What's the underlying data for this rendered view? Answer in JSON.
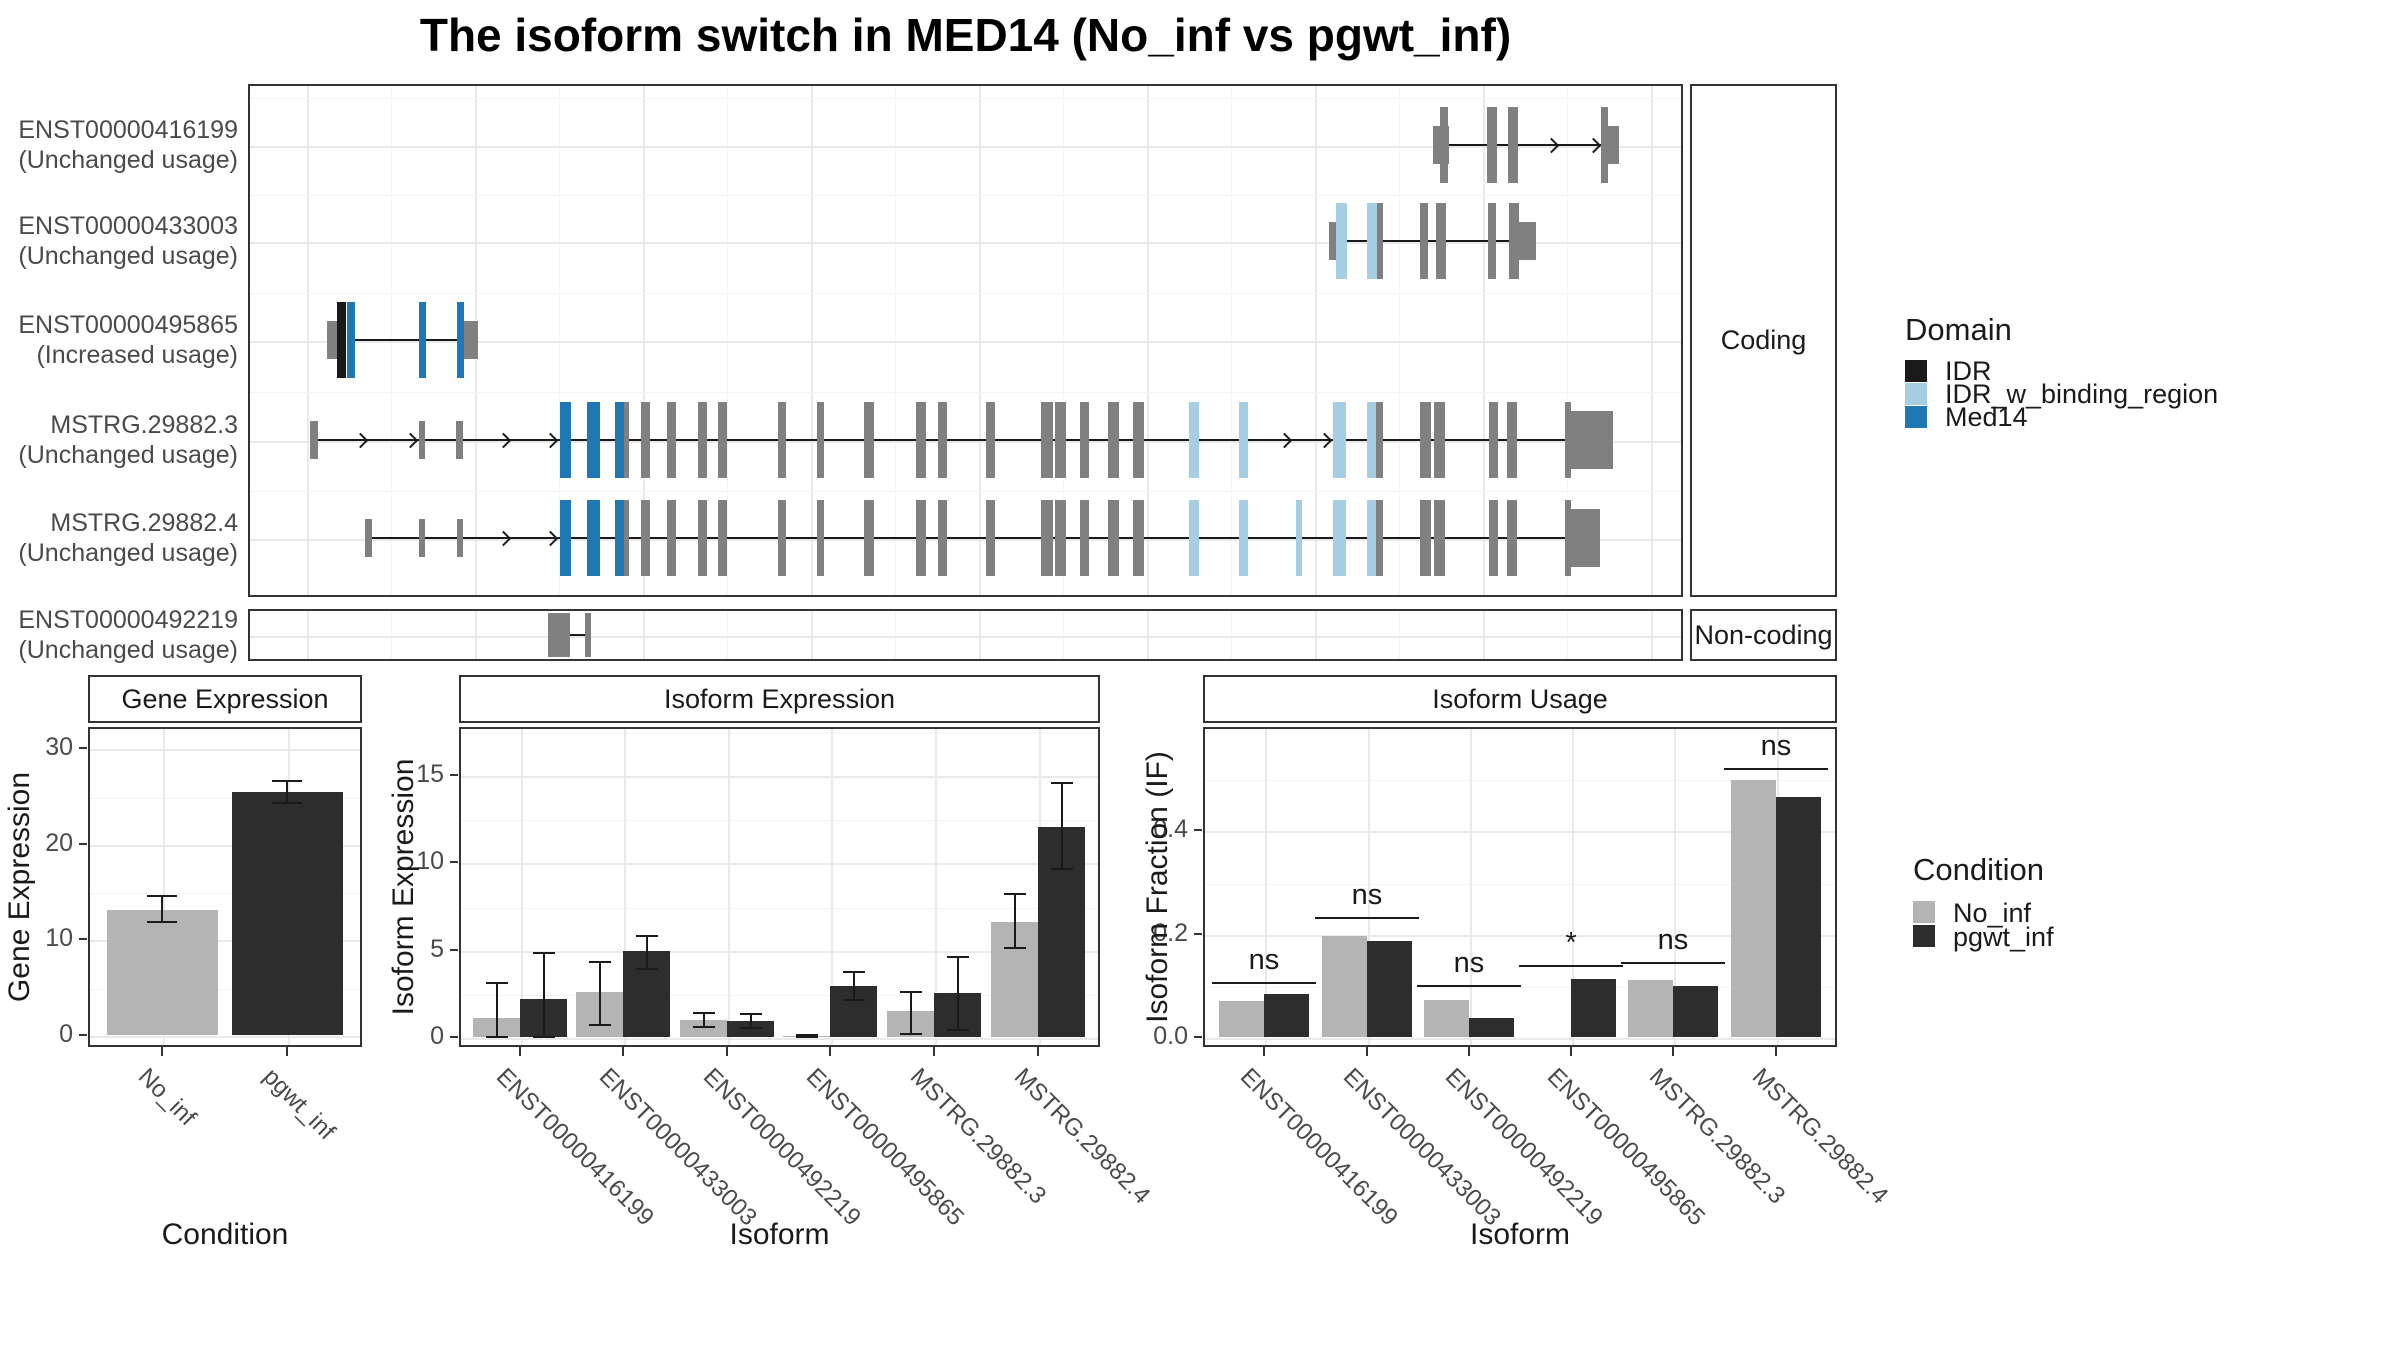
{
  "title": "The isoform switch in MED14 (No_inf vs pgwt_inf)",
  "colors": {
    "exon_gray": "#808080",
    "domain_idr": "#1a1a1a",
    "domain_idr_w_binding": "#a6cee3",
    "domain_med14": "#2077b5",
    "cond_no_inf": "#b4b4b4",
    "cond_pgwt_inf": "#2d2d2d",
    "panel_border": "#333333",
    "grid_major": "#e9e9e9"
  },
  "transcript_plot": {
    "facets": [
      {
        "label": "Coding"
      },
      {
        "label": "Non-coding"
      }
    ],
    "domain_legend": {
      "title": "Domain",
      "items": [
        {
          "label": "IDR",
          "color": "#1a1a1a"
        },
        {
          "label": "IDR_w_binding_region",
          "color": "#a6cee3"
        },
        {
          "label": "Med14",
          "color": "#2077b5"
        }
      ]
    },
    "rows": [
      {
        "label": "ENST00000416199",
        "usage": "(Unchanged usage)",
        "facet": "coding",
        "line": [
          1200,
          1353
        ],
        "arrows": [
          1305,
          1347
        ],
        "exons": [
          [
            1185,
            16,
            "u",
            "g"
          ],
          [
            1192,
            8,
            "c",
            "g"
          ],
          [
            1239,
            10,
            "c",
            "g"
          ],
          [
            1260,
            10,
            "c",
            "g"
          ],
          [
            1353,
            7,
            "c",
            "g"
          ],
          [
            1360,
            11,
            "u",
            "g"
          ]
        ]
      },
      {
        "label": "ENST00000433003",
        "usage": "(Unchanged usage)",
        "facet": "coding",
        "line": [
          1099,
          1272
        ],
        "arrows": [],
        "exons": [
          [
            1081,
            12,
            "u",
            "g"
          ],
          [
            1088,
            11,
            "c",
            "lb"
          ],
          [
            1119,
            10,
            "c",
            "lb"
          ],
          [
            1129,
            6,
            "c",
            "g"
          ],
          [
            1172,
            8,
            "c",
            "g"
          ],
          [
            1188,
            10,
            "c",
            "g"
          ],
          [
            1240,
            8,
            "c",
            "g"
          ],
          [
            1261,
            10,
            "c",
            "g"
          ],
          [
            1271,
            17,
            "u",
            "g"
          ]
        ]
      },
      {
        "label": "ENST00000495865",
        "usage": "(Increased usage)",
        "facet": "coding",
        "line": [
          107,
          209
        ],
        "arrows": [],
        "exons": [
          [
            79,
            11,
            "u",
            "g"
          ],
          [
            89,
            9,
            "c",
            "k"
          ],
          [
            99,
            8,
            "c",
            "b"
          ],
          [
            171,
            7,
            "c",
            "b"
          ],
          [
            209,
            7,
            "c",
            "b"
          ],
          [
            216,
            14,
            "u",
            "g"
          ]
        ]
      },
      {
        "label": "MSTRG.29882.3",
        "usage": "(Unchanged usage)",
        "facet": "coding",
        "line": [
          70,
          1323
        ],
        "arrows": [
          114,
          164,
          257,
          304,
          1038,
          1078
        ],
        "exons": [
          [
            62,
            8,
            "u",
            "g"
          ],
          [
            171,
            6,
            "u",
            "g"
          ],
          [
            208,
            7,
            "u",
            "g"
          ],
          [
            312,
            11,
            "c",
            "b"
          ],
          [
            339,
            13,
            "c",
            "b"
          ],
          [
            367,
            9,
            "c",
            "b"
          ],
          [
            376,
            5,
            "c",
            "g"
          ],
          [
            393,
            9,
            "c",
            "g"
          ],
          [
            419,
            9,
            "c",
            "g"
          ],
          [
            450,
            9,
            "c",
            "g"
          ],
          [
            470,
            9,
            "c",
            "g"
          ],
          [
            530,
            8,
            "c",
            "g"
          ],
          [
            569,
            7,
            "c",
            "g"
          ],
          [
            616,
            10,
            "c",
            "g"
          ],
          [
            668,
            10,
            "c",
            "g"
          ],
          [
            690,
            9,
            "c",
            "g"
          ],
          [
            738,
            9,
            "c",
            "g"
          ],
          [
            793,
            12,
            "c",
            "g"
          ],
          [
            807,
            11,
            "c",
            "g"
          ],
          [
            832,
            9,
            "c",
            "g"
          ],
          [
            860,
            11,
            "c",
            "g"
          ],
          [
            885,
            11,
            "c",
            "g"
          ],
          [
            941,
            10,
            "c",
            "lb"
          ],
          [
            991,
            9,
            "c",
            "lb"
          ],
          [
            1085,
            13,
            "c",
            "lb"
          ],
          [
            1119,
            9,
            "c",
            "lb"
          ],
          [
            1128,
            7,
            "c",
            "g"
          ],
          [
            1172,
            11,
            "c",
            "g"
          ],
          [
            1186,
            11,
            "c",
            "g"
          ],
          [
            1241,
            9,
            "c",
            "g"
          ],
          [
            1259,
            10,
            "c",
            "g"
          ],
          [
            1317,
            6,
            "c",
            "g"
          ],
          [
            1323,
            42,
            "U",
            "g"
          ]
        ]
      },
      {
        "label": "MSTRG.29882.4",
        "usage": "(Unchanged usage)",
        "facet": "coding",
        "line": [
          124,
          1323
        ],
        "arrows": [
          257,
          304
        ],
        "exons": [
          [
            117,
            7,
            "u",
            "g"
          ],
          [
            171,
            6,
            "u",
            "g"
          ],
          [
            209,
            6,
            "u",
            "g"
          ],
          [
            312,
            11,
            "c",
            "b"
          ],
          [
            339,
            13,
            "c",
            "b"
          ],
          [
            367,
            9,
            "c",
            "b"
          ],
          [
            376,
            5,
            "c",
            "g"
          ],
          [
            393,
            9,
            "c",
            "g"
          ],
          [
            419,
            9,
            "c",
            "g"
          ],
          [
            450,
            9,
            "c",
            "g"
          ],
          [
            470,
            9,
            "c",
            "g"
          ],
          [
            530,
            8,
            "c",
            "g"
          ],
          [
            569,
            7,
            "c",
            "g"
          ],
          [
            616,
            10,
            "c",
            "g"
          ],
          [
            668,
            10,
            "c",
            "g"
          ],
          [
            690,
            9,
            "c",
            "g"
          ],
          [
            738,
            9,
            "c",
            "g"
          ],
          [
            793,
            12,
            "c",
            "g"
          ],
          [
            807,
            11,
            "c",
            "g"
          ],
          [
            832,
            9,
            "c",
            "g"
          ],
          [
            860,
            11,
            "c",
            "g"
          ],
          [
            885,
            11,
            "c",
            "g"
          ],
          [
            941,
            10,
            "c",
            "lb"
          ],
          [
            991,
            9,
            "c",
            "lb"
          ],
          [
            1048,
            6,
            "c",
            "lb"
          ],
          [
            1085,
            13,
            "c",
            "lb"
          ],
          [
            1119,
            9,
            "c",
            "lb"
          ],
          [
            1128,
            7,
            "c",
            "g"
          ],
          [
            1172,
            11,
            "c",
            "g"
          ],
          [
            1186,
            11,
            "c",
            "g"
          ],
          [
            1241,
            9,
            "c",
            "g"
          ],
          [
            1259,
            10,
            "c",
            "g"
          ],
          [
            1317,
            6,
            "c",
            "g"
          ],
          [
            1323,
            29,
            "U",
            "g"
          ]
        ]
      },
      {
        "label": "ENST00000492219",
        "usage": "(Unchanged usage)",
        "facet": "noncoding",
        "line": [
          321,
          338
        ],
        "arrows": [],
        "exons": [
          [
            300,
            22,
            "n",
            "g"
          ],
          [
            337,
            6,
            "n",
            "g"
          ]
        ]
      }
    ]
  },
  "condition_legend": {
    "title": "Condition",
    "items": [
      {
        "label": "No_inf",
        "color": "#b4b4b4"
      },
      {
        "label": "pgwt_inf",
        "color": "#2d2d2d"
      }
    ]
  },
  "chart_data": [
    {
      "key": "gene_expression",
      "type": "bar",
      "title": "Gene Expression",
      "ylabel": "Gene Expression",
      "xlabel": "Condition",
      "categories": [
        "No_inf",
        "pgwt_inf"
      ],
      "ylim": [
        0,
        32
      ],
      "ytick_values": [
        0,
        10,
        20,
        30
      ],
      "ytick_labels": [
        "0",
        "10",
        "20",
        "30"
      ],
      "ytick_minor": [
        5,
        15,
        25
      ],
      "series": [
        {
          "name": "No_inf",
          "color_key": "gray",
          "values": [
            13.1
          ],
          "errors": [
            [
              11.8,
              14.5
            ]
          ]
        },
        {
          "name": "pgwt_inf",
          "color_key": "dark",
          "values": [
            25.4
          ],
          "errors": [
            [
              24.2,
              26.6
            ]
          ]
        }
      ],
      "note": "one bar per condition: No_inf=13.1 err 11.8-14.5, pgwt_inf=25.4 err 24.2-26.6"
    },
    {
      "key": "isoform_expression",
      "type": "bar",
      "title": "Isoform Expression",
      "ylabel": "Isoform Expression",
      "xlabel": "Isoform",
      "categories": [
        "ENST00000416199",
        "ENST00000433003",
        "ENST00000492219",
        "ENST00000495865",
        "MSTRG.29882.3",
        "MSTRG.29882.4"
      ],
      "ylim": [
        0,
        17.7
      ],
      "ytick_values": [
        0,
        5,
        10,
        15
      ],
      "ytick_labels": [
        "0",
        "5",
        "10",
        "15"
      ],
      "ytick_minor": [
        2.5,
        7.5,
        12.5,
        17.5
      ],
      "series": [
        {
          "name": "No_inf",
          "color_key": "gray",
          "values": [
            1.1,
            2.6,
            1.0,
            0.05,
            1.5,
            6.6
          ],
          "errors": [
            [
              0,
              3.1
            ],
            [
              0.7,
              4.3
            ],
            [
              0.6,
              1.35
            ],
            [
              0,
              0.12
            ],
            [
              0.15,
              2.6
            ],
            [
              5.1,
              8.2
            ]
          ]
        },
        {
          "name": "pgwt_inf",
          "color_key": "dark",
          "values": [
            2.2,
            4.9,
            0.9,
            2.9,
            2.5,
            12.0
          ],
          "errors": [
            [
              0,
              4.8
            ],
            [
              3.9,
              5.8
            ],
            [
              0.5,
              1.3
            ],
            [
              2.1,
              3.7
            ],
            [
              0.4,
              4.6
            ],
            [
              9.6,
              14.5
            ]
          ]
        }
      ]
    },
    {
      "key": "isoform_usage",
      "type": "bar",
      "title": "Isoform Usage",
      "ylabel": "Isoform Fraction (IF)",
      "xlabel": "Isoform",
      "categories": [
        "ENST00000416199",
        "ENST00000433003",
        "ENST00000492219",
        "ENST00000495865",
        "MSTRG.29882.3",
        "MSTRG.29882.4"
      ],
      "ylim": [
        0,
        0.6
      ],
      "ytick_values": [
        0,
        0.2,
        0.4
      ],
      "ytick_labels": [
        "0.0",
        "0.2",
        "0.4"
      ],
      "ytick_minor": [
        0.1,
        0.3,
        0.5
      ],
      "series": [
        {
          "name": "No_inf",
          "color_key": "gray",
          "values": [
            0.07,
            0.196,
            0.071,
            0,
            0.11,
            0.497
          ],
          "errors": null
        },
        {
          "name": "pgwt_inf",
          "color_key": "dark",
          "values": [
            0.083,
            0.186,
            0.037,
            0.112,
            0.098,
            0.464
          ],
          "errors": null
        }
      ],
      "significance": [
        "ns",
        "ns",
        "ns",
        "*",
        "ns",
        "ns"
      ],
      "sig_height": [
        0.106,
        0.232,
        0.1,
        0.14,
        0.145,
        0.52
      ]
    }
  ]
}
